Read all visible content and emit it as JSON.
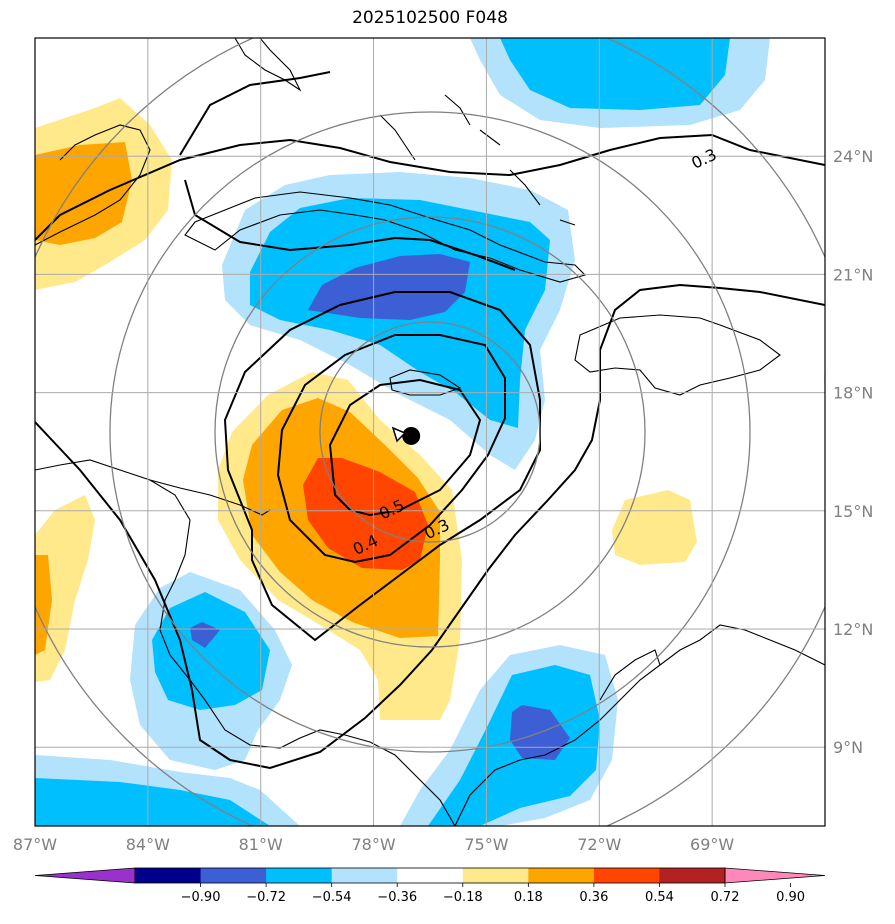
{
  "title": "2025102500 F048",
  "map": {
    "lon_range": [
      -87,
      -66
    ],
    "lat_range": [
      7,
      27
    ],
    "lon_ticks": [
      {
        "value": -87,
        "label": "87°W"
      },
      {
        "value": -84,
        "label": "84°W"
      },
      {
        "value": -81,
        "label": "81°W"
      },
      {
        "value": -78,
        "label": "78°W"
      },
      {
        "value": -75,
        "label": "75°W"
      },
      {
        "value": -72,
        "label": "72°W"
      },
      {
        "value": -69,
        "label": "69°W"
      }
    ],
    "lat_ticks": [
      {
        "value": 9,
        "label": "9°N"
      },
      {
        "value": 12,
        "label": "12°N"
      },
      {
        "value": 15,
        "label": "15°N"
      },
      {
        "value": 18,
        "label": "18°N"
      },
      {
        "value": 21,
        "label": "21°N"
      },
      {
        "value": 24,
        "label": "24°N"
      }
    ],
    "storm_center": {
      "lon": -77.0,
      "lat": 16.9
    },
    "contour_labels": [
      {
        "text": "0.3",
        "lon": -69.2,
        "lat": 23.9
      },
      {
        "text": "0.5",
        "lon": -77.5,
        "lat": 15.0
      },
      {
        "text": "0.4",
        "lon": -78.2,
        "lat": 14.1
      },
      {
        "text": "0.3",
        "lon": -76.3,
        "lat": 14.5
      }
    ]
  },
  "colorbar": {
    "colors": [
      "#9932cc",
      "#00008b",
      "#3d5fd6",
      "#00bfff",
      "#b3e2fc",
      "#ffffff",
      "#ffe98a",
      "#ffa500",
      "#ff4500",
      "#b22222",
      "#ff88bb"
    ],
    "labels": [
      "−0.90",
      "−0.72",
      "−0.54",
      "−0.36",
      "−0.18",
      "0.18",
      "0.36",
      "0.54",
      "0.72",
      "0.90"
    ]
  },
  "colors": {
    "neg_light": "#b3e2fc",
    "neg_mid": "#00bfff",
    "neg_dark": "#3d5fd6",
    "pos_light": "#ffe98a",
    "pos_mid": "#ffa500",
    "pos_dark": "#ff4500",
    "grid": "#aaaaaa",
    "range_rings": "#808080"
  }
}
